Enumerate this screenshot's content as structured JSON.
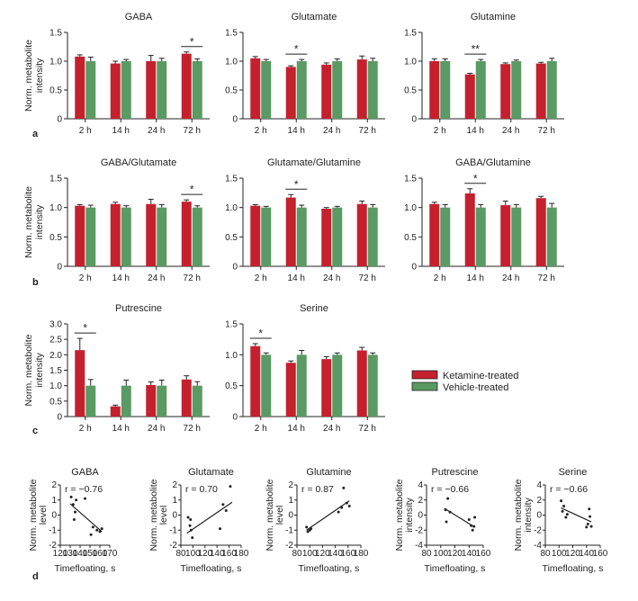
{
  "colors": {
    "ketamine": "#c4202e",
    "vehicle": "#5a9a63",
    "axis": "#222222",
    "error": "#222222",
    "fit": "#222222",
    "dot": "#222222"
  },
  "legend": {
    "ketamine_label": "Ketamine-treated",
    "vehicle_label": "Vehicle-treated"
  },
  "panel_letters": {
    "a": "a",
    "b": "b",
    "c": "c",
    "d": "d"
  },
  "y_label_lines": {
    "norm_metabolite": "Norm. metabolite",
    "intensity": "intensity",
    "level": "level"
  },
  "chart_data": [
    {
      "id": "gaba",
      "type": "bar",
      "panel": "a",
      "title": "GABA",
      "categories": [
        "2 h",
        "14 h",
        "24 h",
        "72 h"
      ],
      "ylim": [
        0,
        1.5
      ],
      "yticks": [
        "0",
        "0.5",
        "1.0",
        "1.5"
      ],
      "ylabel": [
        "Norm. metabolite",
        "intensity"
      ],
      "series": [
        {
          "name": "Ketamine-treated",
          "values": [
            1.08,
            0.96,
            1.0,
            1.13
          ],
          "errors": [
            0.03,
            0.04,
            0.1,
            0.03
          ]
        },
        {
          "name": "Vehicle-treated",
          "values": [
            1.0,
            1.0,
            1.0,
            1.0
          ],
          "errors": [
            0.07,
            0.03,
            0.05,
            0.04
          ]
        }
      ],
      "significance": [
        {
          "category": "72 h",
          "label": "*"
        }
      ]
    },
    {
      "id": "glutamate",
      "type": "bar",
      "panel": "a",
      "title": "Glutamate",
      "categories": [
        "2 h",
        "14 h",
        "24 h",
        "72 h"
      ],
      "ylim": [
        0,
        1.5
      ],
      "yticks": [
        "0",
        "0.5",
        "1.0",
        "1.5"
      ],
      "series": [
        {
          "name": "Ketamine-treated",
          "values": [
            1.05,
            0.9,
            0.94,
            1.03
          ],
          "errors": [
            0.03,
            0.02,
            0.03,
            0.06
          ]
        },
        {
          "name": "Vehicle-treated",
          "values": [
            1.0,
            1.0,
            1.0,
            1.0
          ],
          "errors": [
            0.03,
            0.03,
            0.04,
            0.05
          ]
        }
      ],
      "significance": [
        {
          "category": "14 h",
          "label": "*"
        }
      ]
    },
    {
      "id": "glutamine",
      "type": "bar",
      "panel": "a",
      "title": "Glutamine",
      "categories": [
        "2 h",
        "14 h",
        "24 h",
        "72 h"
      ],
      "ylim": [
        0,
        1.5
      ],
      "yticks": [
        "0",
        "0.5",
        "1.0",
        "1.5"
      ],
      "series": [
        {
          "name": "Ketamine-treated",
          "values": [
            1.0,
            0.77,
            0.95,
            0.96
          ],
          "errors": [
            0.04,
            0.02,
            0.02,
            0.02
          ]
        },
        {
          "name": "Vehicle-treated",
          "values": [
            1.0,
            1.0,
            1.0,
            1.0
          ],
          "errors": [
            0.04,
            0.03,
            0.02,
            0.05
          ]
        }
      ],
      "significance": [
        {
          "category": "14 h",
          "label": "**"
        }
      ]
    },
    {
      "id": "gaba-glutamate",
      "type": "bar",
      "panel": "b",
      "title": "GABA/Glutamate",
      "categories": [
        "2 h",
        "14 h",
        "24 h",
        "72 h"
      ],
      "ylim": [
        0,
        1.5
      ],
      "yticks": [
        "0",
        "0.5",
        "1.0",
        "1.5"
      ],
      "ylabel": [
        "Norm. metabolite",
        "intensity"
      ],
      "series": [
        {
          "name": "Ketamine-treated",
          "values": [
            1.03,
            1.06,
            1.06,
            1.1
          ],
          "errors": [
            0.02,
            0.03,
            0.08,
            0.03
          ]
        },
        {
          "name": "Vehicle-treated",
          "values": [
            1.0,
            1.0,
            1.0,
            1.0
          ],
          "errors": [
            0.04,
            0.03,
            0.05,
            0.03
          ]
        }
      ],
      "significance": [
        {
          "category": "72 h",
          "label": "*"
        }
      ]
    },
    {
      "id": "glutamate-glutamine",
      "type": "bar",
      "panel": "b",
      "title": "Glutamate/Glutamine",
      "categories": [
        "2 h",
        "14 h",
        "24 h",
        "72 h"
      ],
      "ylim": [
        0,
        1.5
      ],
      "yticks": [
        "0",
        "0.5",
        "1.0",
        "1.5"
      ],
      "series": [
        {
          "name": "Ketamine-treated",
          "values": [
            1.03,
            1.17,
            0.98,
            1.06
          ],
          "errors": [
            0.02,
            0.05,
            0.02,
            0.05
          ]
        },
        {
          "name": "Vehicle-treated",
          "values": [
            1.0,
            1.0,
            1.0,
            1.0
          ],
          "errors": [
            0.02,
            0.04,
            0.02,
            0.05
          ]
        }
      ],
      "significance": [
        {
          "category": "14 h",
          "label": "*"
        }
      ]
    },
    {
      "id": "gaba-glutamine",
      "type": "bar",
      "panel": "b",
      "title": "GABA/Glutamine",
      "categories": [
        "2 h",
        "14 h",
        "24 h",
        "72 h"
      ],
      "ylim": [
        0,
        1.5
      ],
      "yticks": [
        "0",
        "0.5",
        "1.0",
        "1.5"
      ],
      "series": [
        {
          "name": "Ketamine-treated",
          "values": [
            1.06,
            1.24,
            1.04,
            1.16
          ],
          "errors": [
            0.03,
            0.08,
            0.07,
            0.03
          ]
        },
        {
          "name": "Vehicle-treated",
          "values": [
            1.0,
            1.0,
            1.0,
            1.0
          ],
          "errors": [
            0.05,
            0.05,
            0.05,
            0.07
          ]
        }
      ],
      "significance": [
        {
          "category": "14 h",
          "label": "*"
        }
      ]
    },
    {
      "id": "putrescine",
      "type": "bar",
      "panel": "c",
      "title": "Putrescine",
      "categories": [
        "2 h",
        "14 h",
        "24 h",
        "72 h"
      ],
      "ylim": [
        0,
        3.0
      ],
      "yticks": [
        "0",
        "0.5",
        "1.0",
        "1.5",
        "2.0",
        "2.5",
        "3.0"
      ],
      "ylabel": [
        "Norm. metabolite",
        "intensity"
      ],
      "series": [
        {
          "name": "Ketamine-treated",
          "values": [
            2.15,
            0.33,
            1.02,
            1.2
          ],
          "errors": [
            0.38,
            0.04,
            0.1,
            0.12
          ]
        },
        {
          "name": "Vehicle-treated",
          "values": [
            1.0,
            1.0,
            1.0,
            1.0
          ],
          "errors": [
            0.2,
            0.18,
            0.18,
            0.13
          ]
        }
      ],
      "significance": [
        {
          "category": "2 h",
          "label": "*"
        }
      ]
    },
    {
      "id": "serine",
      "type": "bar",
      "panel": "c",
      "title": "Serine",
      "categories": [
        "2 h",
        "14 h",
        "24 h",
        "72 h"
      ],
      "ylim": [
        0,
        1.5
      ],
      "yticks": [
        "0",
        "0.5",
        "1.0",
        "1.5"
      ],
      "series": [
        {
          "name": "Ketamine-treated",
          "values": [
            1.14,
            0.87,
            0.93,
            1.07
          ],
          "errors": [
            0.04,
            0.03,
            0.04,
            0.05
          ]
        },
        {
          "name": "Vehicle-treated",
          "values": [
            1.0,
            1.0,
            1.0,
            1.0
          ],
          "errors": [
            0.03,
            0.07,
            0.03,
            0.03
          ]
        }
      ],
      "significance": [
        {
          "category": "2 h",
          "label": "*"
        }
      ]
    },
    {
      "id": "scatter-gaba",
      "type": "scatter",
      "panel": "d",
      "title": "GABA",
      "r_text": "r = −0.76",
      "xlabel": "Timefloating, s",
      "ylabel": [
        "Norm. metabolite",
        "level"
      ],
      "xlim": [
        120,
        170
      ],
      "ylim": [
        -2,
        2
      ],
      "xticks": [
        "120",
        "130",
        "140",
        "150",
        "160",
        "170"
      ],
      "yticks": [
        "-2",
        "-1",
        "0",
        "1",
        "2"
      ],
      "points": [
        [
          131,
          1.2
        ],
        [
          133,
          0.7
        ],
        [
          134,
          -0.3
        ],
        [
          135,
          0.2
        ],
        [
          136,
          1.0
        ],
        [
          145,
          1.1
        ],
        [
          151,
          -1.3
        ],
        [
          153,
          -0.8
        ],
        [
          157,
          -1.0
        ],
        [
          160,
          -1.1
        ],
        [
          162,
          -0.9
        ]
      ],
      "fit": [
        [
          130,
          0.75
        ],
        [
          162,
          -1.1
        ]
      ]
    },
    {
      "id": "scatter-glutamate",
      "type": "scatter",
      "panel": "d",
      "title": "Glutamate",
      "r_text": "r = 0.70",
      "xlabel": "Timefloating, s",
      "ylabel": [
        "Norm. metabolite",
        "level"
      ],
      "xlim": [
        80,
        180
      ],
      "ylim": [
        -2,
        2
      ],
      "xticks": [
        "80",
        "100",
        "120",
        "140",
        "160",
        "180"
      ],
      "yticks": [
        "-2",
        "-1",
        "0",
        "1",
        "2"
      ],
      "points": [
        [
          92,
          -0.15
        ],
        [
          95,
          -0.7
        ],
        [
          96,
          -0.3
        ],
        [
          97,
          -1.0
        ],
        [
          99,
          -1.5
        ],
        [
          145,
          -0.9
        ],
        [
          150,
          0.7
        ],
        [
          155,
          0.3
        ],
        [
          162,
          1.9
        ]
      ],
      "fit": [
        [
          90,
          -1.2
        ],
        [
          165,
          0.85
        ]
      ]
    },
    {
      "id": "scatter-glutamine",
      "type": "scatter",
      "panel": "d",
      "title": "Glutamine",
      "r_text": "r = 0.87",
      "xlabel": "Timefloating, s",
      "ylabel": [
        "Norm. metabolite",
        "level"
      ],
      "xlim": [
        80,
        180
      ],
      "ylim": [
        -2,
        2
      ],
      "xticks": [
        "80",
        "100",
        "120",
        "140",
        "160",
        "180"
      ],
      "yticks": [
        "-2",
        "-1",
        "0",
        "1",
        "2"
      ],
      "points": [
        [
          95,
          -0.8
        ],
        [
          97,
          -1.1
        ],
        [
          100,
          -1.0
        ],
        [
          102,
          -0.9
        ],
        [
          145,
          0.2
        ],
        [
          150,
          0.5
        ],
        [
          153,
          1.8
        ],
        [
          158,
          0.8
        ],
        [
          162,
          0.6
        ]
      ],
      "fit": [
        [
          95,
          -1.0
        ],
        [
          162,
          0.95
        ]
      ]
    },
    {
      "id": "scatter-putrescine",
      "type": "scatter",
      "panel": "d",
      "title": "Putrescine",
      "r_text": "r = −0.66",
      "xlabel": "Timefloating, s",
      "ylabel": [
        "Norm. metabolite",
        "intensity"
      ],
      "xlim": [
        80,
        160
      ],
      "ylim": [
        -4,
        4
      ],
      "xticks": [
        "80",
        "100",
        "120",
        "140",
        "160"
      ],
      "yticks": [
        "-4",
        "-2",
        "0",
        "2",
        "4"
      ],
      "points": [
        [
          107,
          0.7
        ],
        [
          108,
          -0.9
        ],
        [
          110,
          2.2
        ],
        [
          113,
          0.4
        ],
        [
          140,
          -0.6
        ],
        [
          143,
          -1.4
        ],
        [
          145,
          -2.0
        ],
        [
          147,
          -1.5
        ],
        [
          148,
          -0.3
        ]
      ],
      "fit": [
        [
          105,
          0.9
        ],
        [
          148,
          -1.6
        ]
      ]
    },
    {
      "id": "scatter-serine",
      "type": "scatter",
      "panel": "d",
      "title": "Serine",
      "r_text": "r = −0.66",
      "xlabel": "Timefloating, s",
      "ylabel": [
        "Norm. metabolite",
        "intensity"
      ],
      "xlim": [
        80,
        160
      ],
      "ylim": [
        -4,
        4
      ],
      "xticks": [
        "80",
        "100",
        "120",
        "140",
        "160"
      ],
      "yticks": [
        "-4",
        "-2",
        "0",
        "2",
        "4"
      ],
      "points": [
        [
          103,
          1.9
        ],
        [
          105,
          0.5
        ],
        [
          107,
          1.2
        ],
        [
          110,
          -0.3
        ],
        [
          112,
          0.1
        ],
        [
          140,
          -1.6
        ],
        [
          142,
          -1.2
        ],
        [
          144,
          0.8
        ],
        [
          145,
          -0.2
        ],
        [
          147,
          -1.5
        ]
      ],
      "fit": [
        [
          103,
          0.95
        ],
        [
          147,
          -0.9
        ]
      ]
    }
  ]
}
